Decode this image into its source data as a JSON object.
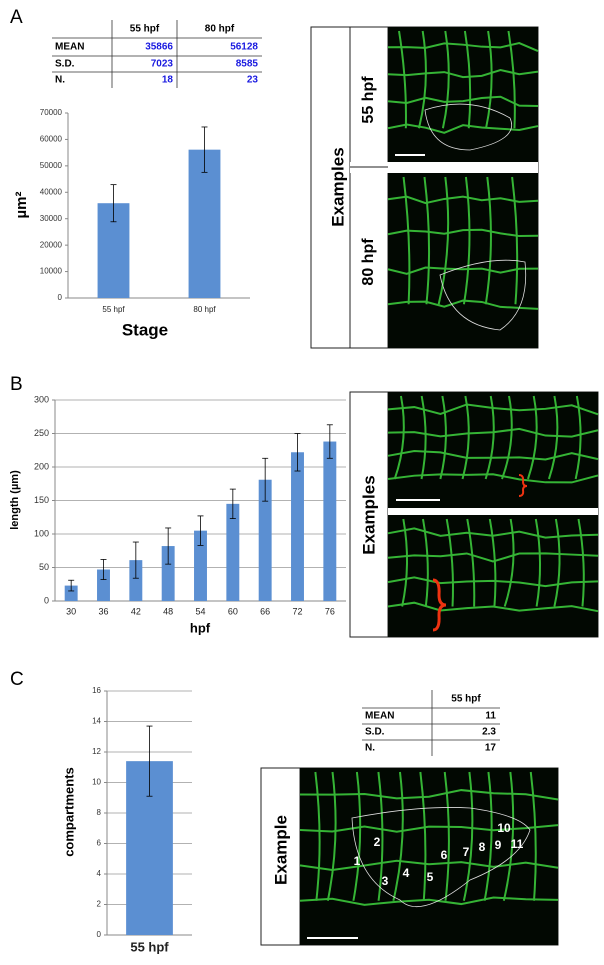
{
  "panel_labels": [
    "A",
    "B",
    "C"
  ],
  "chart_data": [
    {
      "type": "bar",
      "categories": [
        "55 hpf",
        "80 hpf"
      ],
      "values": [
        35866,
        56128
      ],
      "errors": [
        7023,
        8585
      ],
      "color": "#5b8fd2",
      "ylim": [
        0,
        70000
      ],
      "yticks": [
        0,
        10000,
        20000,
        30000,
        40000,
        50000,
        60000,
        70000
      ],
      "grid": false,
      "y_label": "µm²",
      "x_label": "Stage"
    },
    {
      "type": "bar",
      "categories": [
        "30",
        "36",
        "42",
        "48",
        "54",
        "60",
        "66",
        "72",
        "76"
      ],
      "values": [
        23,
        47,
        61,
        82,
        105,
        145,
        181,
        222,
        238
      ],
      "errors": [
        8,
        15,
        27,
        27,
        22,
        22,
        32,
        28,
        25
      ],
      "color": "#5b8fd2",
      "ylim": [
        0,
        300
      ],
      "yticks": [
        0,
        50,
        100,
        150,
        200,
        250,
        300
      ],
      "grid": true,
      "y_label": "length (µm)",
      "x_label": "hpf"
    },
    {
      "type": "bar",
      "categories": [
        "55 hpf"
      ],
      "values": [
        11.4
      ],
      "errors": [
        2.3
      ],
      "color": "#5b8fd2",
      "ylim": [
        0,
        16
      ],
      "yticks": [
        0,
        2,
        4,
        6,
        8,
        10,
        12,
        14,
        16
      ],
      "grid": true,
      "y_label": "compartments"
    }
  ],
  "tables": [
    {
      "header": [
        "55 hpf",
        "80 hpf"
      ],
      "rows": [
        [
          "MEAN",
          35866,
          56128
        ],
        [
          "S.D.",
          7023,
          8585
        ],
        [
          "N.",
          18,
          23
        ]
      ]
    },
    {
      "header": [
        "55 hpf"
      ],
      "rows": [
        [
          "MEAN",
          11
        ],
        [
          "S.D.",
          2.3
        ],
        [
          "N.",
          17
        ]
      ]
    }
  ],
  "images": [
    {
      "title": "Examples",
      "labels": [
        "55 hpf",
        "80 hpf"
      ]
    },
    {
      "title": "Examples"
    },
    {
      "title": "Example",
      "numbers": [
        1,
        2,
        3,
        4,
        5,
        6,
        7,
        8,
        9,
        10,
        11
      ]
    }
  ]
}
